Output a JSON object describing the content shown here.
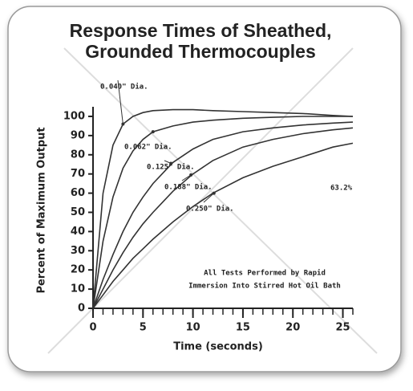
{
  "chart_data": {
    "type": "line",
    "title": [
      "Response Times of Sheathed,",
      "Grounded Thermocouples"
    ],
    "x_label": "Time (seconds)",
    "y_label": "Percent of Maximum Output",
    "x": [
      0,
      1,
      2,
      3,
      4,
      5,
      6,
      8,
      10,
      12,
      15,
      18,
      21,
      24,
      26
    ],
    "series": [
      {
        "name": "0.040\" Dia.",
        "color": "#333333",
        "values": [
          0,
          60,
          85,
          96,
          100,
          102,
          103,
          103.5,
          103.5,
          103,
          102.5,
          102,
          101.5,
          100.5,
          100
        ]
      },
      {
        "name": "0.062\" Dia.",
        "color": "#333333",
        "values": [
          0,
          35,
          58,
          73,
          82,
          88,
          92,
          95,
          97,
          98,
          99,
          99.5,
          100,
          100,
          100
        ]
      },
      {
        "name": "0.125\" Dia.",
        "color": "#333333",
        "values": [
          0,
          15,
          28,
          40,
          50,
          58,
          65,
          76,
          83,
          88,
          92,
          94,
          95.5,
          96.5,
          97
        ]
      },
      {
        "name": "0.188\" Dia.",
        "color": "#333333",
        "values": [
          0,
          10,
          20,
          29,
          37,
          44,
          50,
          61,
          70,
          77,
          84,
          88,
          91,
          93,
          94
        ]
      },
      {
        "name": "0.250\" Dia.",
        "color": "#333333",
        "values": [
          0,
          7,
          14,
          20,
          26,
          31,
          36,
          45,
          53,
          60,
          68,
          74,
          79,
          84,
          86
        ]
      }
    ],
    "xlim": [
      0,
      26
    ],
    "ylim": [
      0,
      105
    ],
    "xticks": [
      0,
      5,
      10,
      15,
      20,
      25
    ],
    "yticks": [
      0,
      10,
      20,
      30,
      40,
      50,
      60,
      70,
      80,
      90,
      100
    ],
    "annotations": [
      "63.2%",
      "All Tests Performed by Rapid",
      "Immersion Into Stirred Hot Oil Bath"
    ]
  }
}
